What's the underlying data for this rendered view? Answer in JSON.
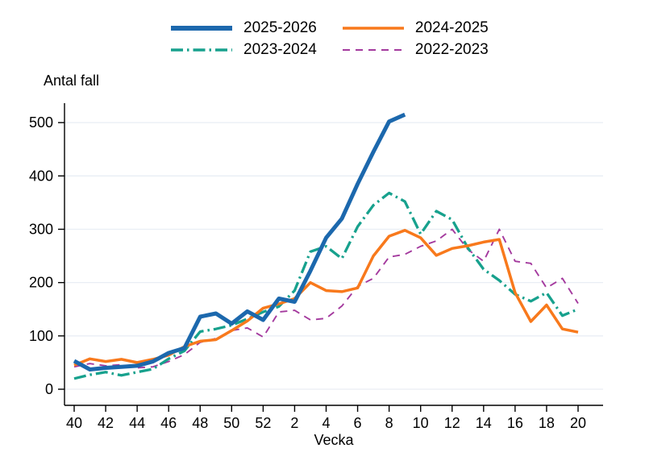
{
  "y_axis_title": "Antal fall",
  "x_axis_title": "Vecka",
  "chart_data": {
    "type": "line",
    "title": "",
    "ylabel": "Antal fall",
    "xlabel": "Vecka",
    "ylim": [
      0,
      500
    ],
    "yticks": [
      0,
      100,
      200,
      300,
      400,
      500
    ],
    "grid": "horizontal",
    "legend_position": "top-center",
    "x_weeks": [
      40,
      41,
      42,
      43,
      44,
      45,
      46,
      47,
      48,
      49,
      50,
      51,
      52,
      1,
      2,
      3,
      4,
      5,
      6,
      7,
      8,
      9,
      10,
      11,
      12,
      13,
      14,
      15,
      16,
      17,
      18,
      19,
      20
    ],
    "x_tick_labels": [
      "40",
      "42",
      "44",
      "46",
      "48",
      "50",
      "52",
      "2",
      "4",
      "6",
      "8",
      "10",
      "12",
      "14",
      "16",
      "18",
      "20"
    ],
    "x_tick_indices": [
      0,
      2,
      4,
      6,
      8,
      10,
      12,
      14,
      16,
      18,
      20,
      22,
      24,
      26,
      28,
      30,
      32
    ],
    "series": [
      {
        "name": "2025-2026",
        "color": "#1c68ad",
        "line_style": "solid",
        "width": 5,
        "dash": "",
        "values": [
          53,
          37,
          40,
          42,
          44,
          52,
          68,
          77,
          136,
          142,
          123,
          146,
          130,
          170,
          164,
          222,
          284,
          320,
          385,
          445,
          502,
          515,
          null,
          null,
          null,
          null,
          null,
          null,
          null,
          null,
          null,
          null,
          null
        ]
      },
      {
        "name": "2024-2025",
        "color": "#f8791c",
        "line_style": "solid",
        "width": 3.5,
        "dash": "",
        "values": [
          45,
          57,
          52,
          56,
          50,
          56,
          64,
          80,
          90,
          93,
          110,
          128,
          152,
          160,
          170,
          200,
          185,
          183,
          190,
          250,
          287,
          298,
          284,
          251,
          264,
          269,
          276,
          281,
          181,
          127,
          158,
          113,
          107
        ]
      },
      {
        "name": "2023-2024",
        "color": "#17a18d",
        "line_style": "dash-dot",
        "width": 3.3,
        "dash": "15 5 2.5 5",
        "values": [
          20,
          27,
          32,
          26,
          32,
          38,
          57,
          72,
          108,
          113,
          120,
          132,
          145,
          155,
          185,
          258,
          268,
          245,
          305,
          345,
          368,
          352,
          291,
          334,
          318,
          265,
          225,
          204,
          178,
          165,
          181,
          138,
          150
        ]
      },
      {
        "name": "2022-2023",
        "color": "#a43a9e",
        "line_style": "dashed",
        "width": 1.9,
        "dash": "9 7",
        "values": [
          42,
          48,
          44,
          46,
          40,
          42,
          52,
          65,
          88,
          95,
          110,
          115,
          98,
          145,
          148,
          130,
          133,
          156,
          193,
          208,
          248,
          253,
          268,
          278,
          300,
          262,
          240,
          300,
          240,
          236,
          190,
          208,
          161
        ]
      }
    ],
    "colors": {
      "axis": "#000000",
      "gridline": "#e9eef4",
      "background": "#ffffff"
    }
  }
}
